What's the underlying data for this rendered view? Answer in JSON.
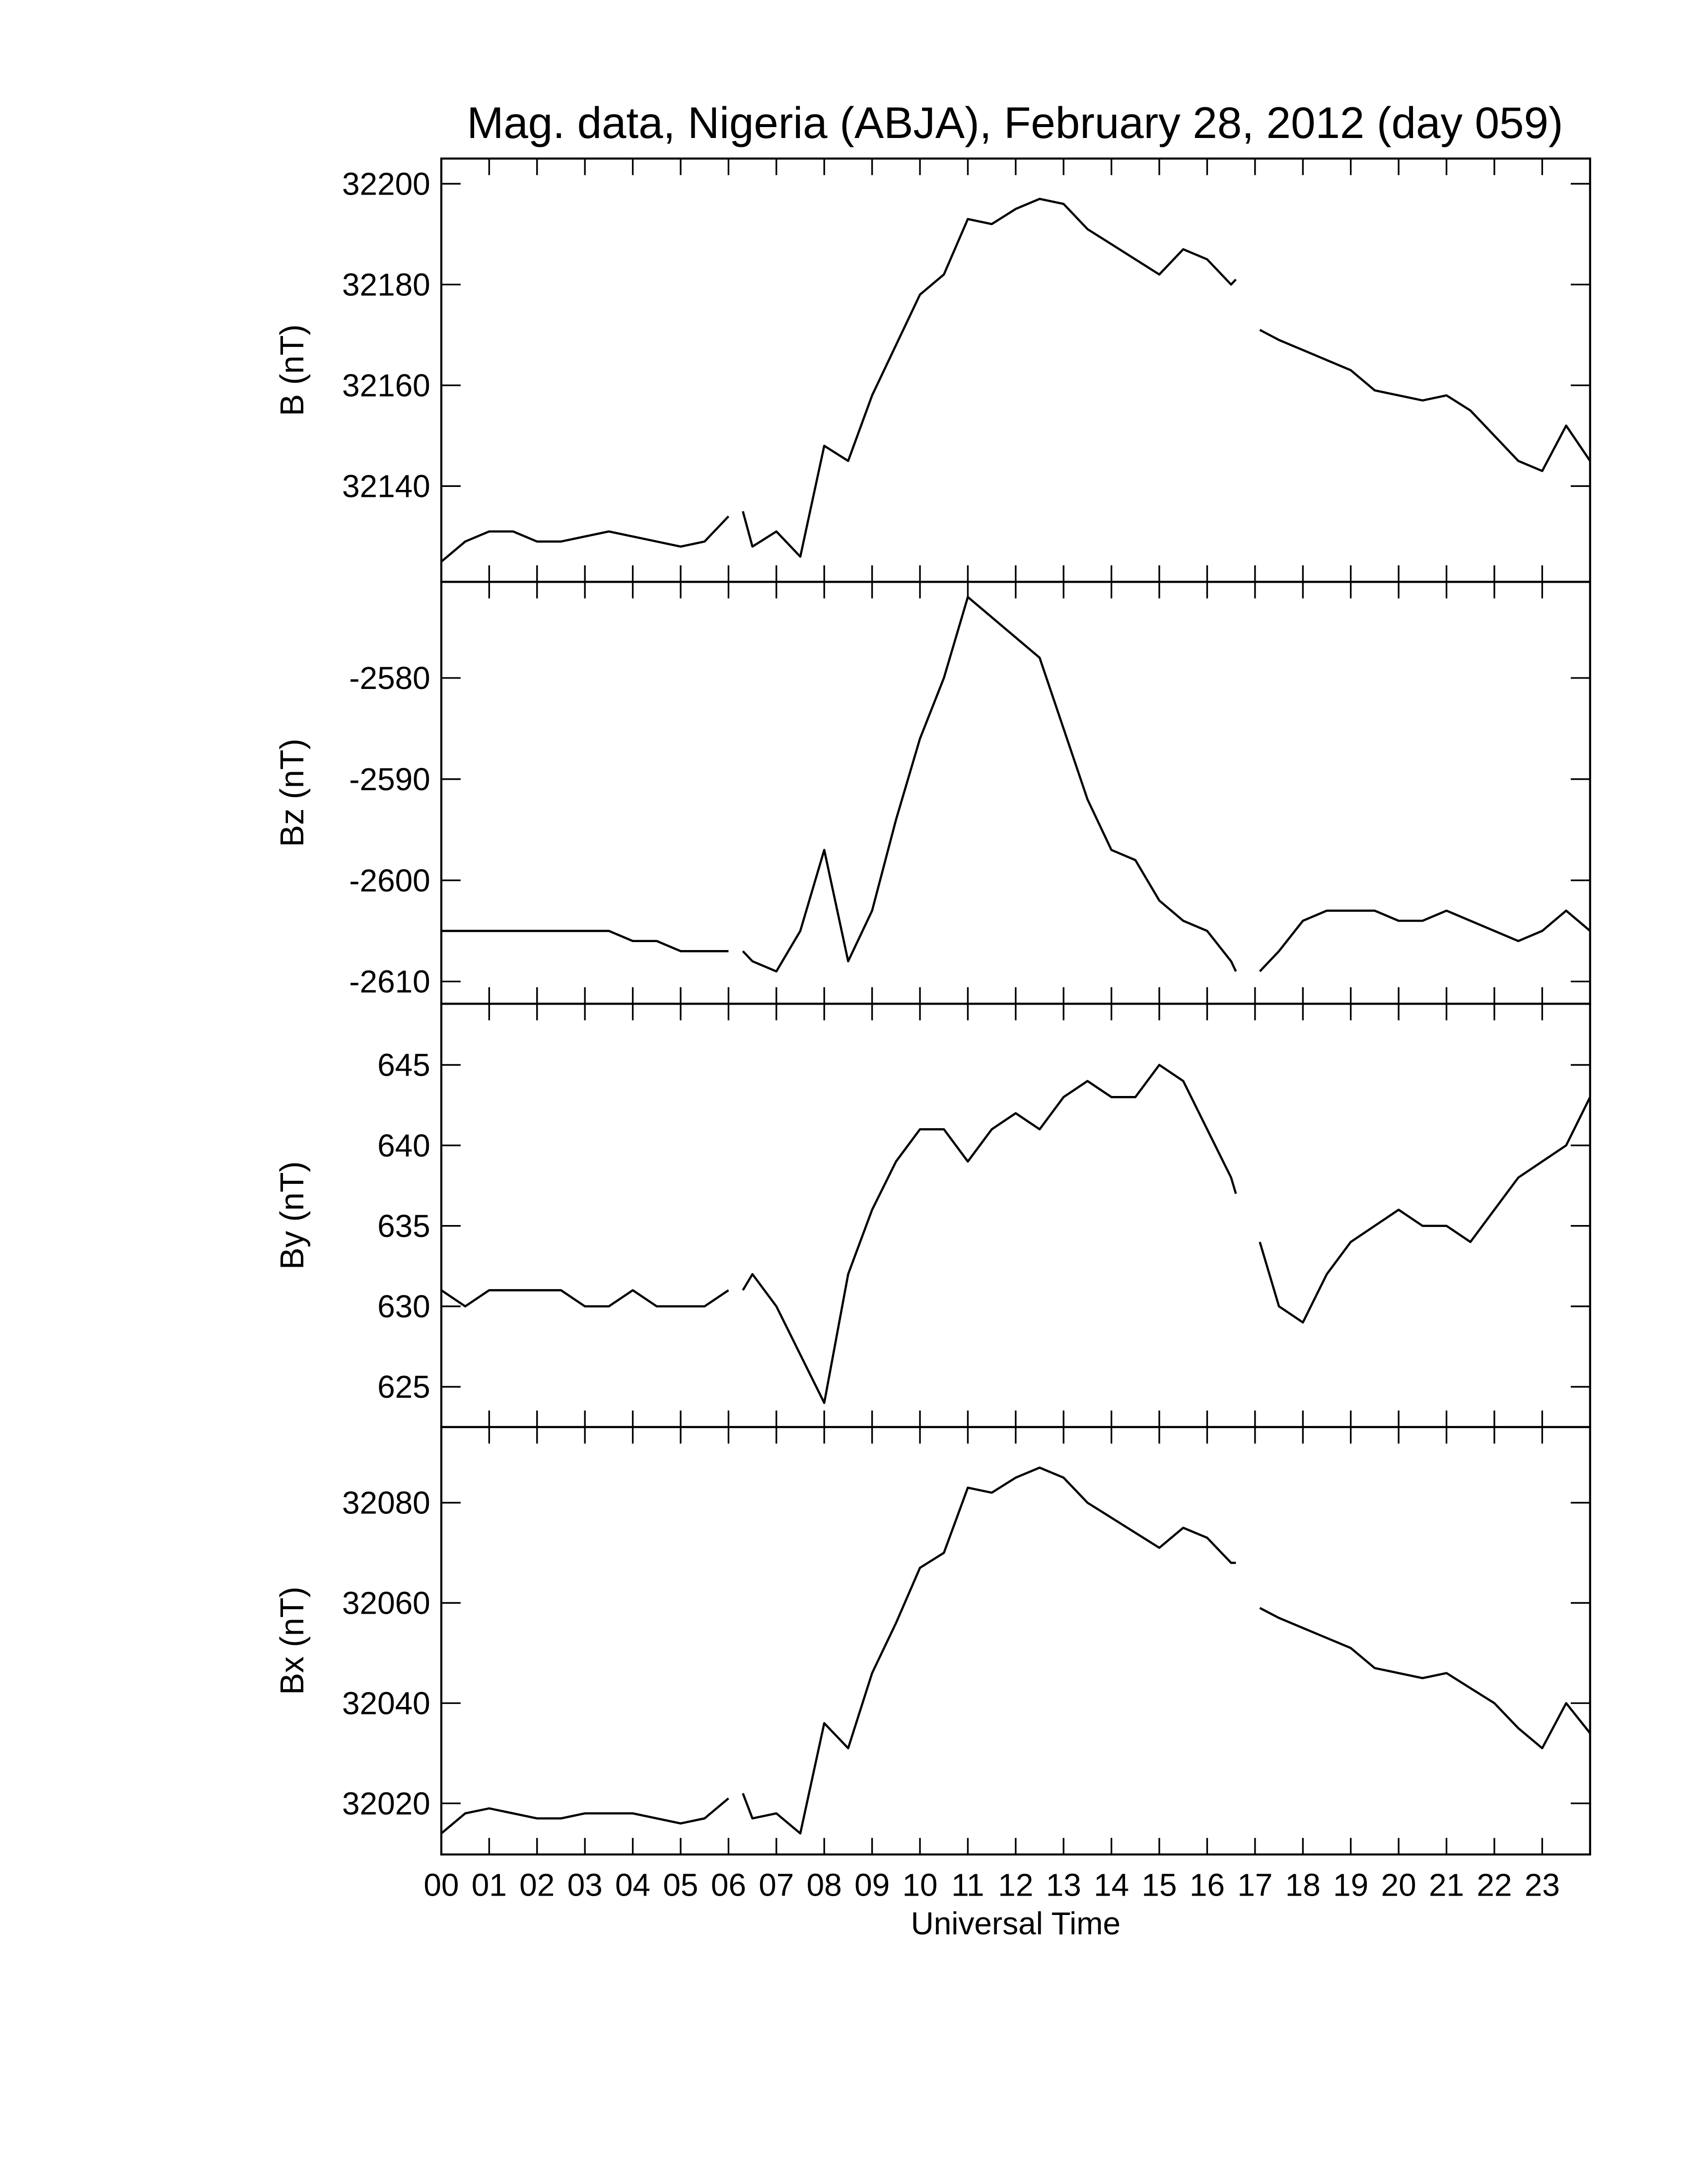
{
  "chart_data": [
    {
      "type": "line",
      "title": "Mag. data, Nigeria (ABJA), February 28, 2012 (day 059)",
      "ylabel": "B (nT)",
      "x": [
        0,
        0.5,
        1,
        1.5,
        2,
        2.5,
        3,
        3.5,
        4,
        4.5,
        5,
        5.5,
        6,
        6.2,
        6.3,
        6.5,
        7,
        7.5,
        8,
        8.5,
        9,
        9.5,
        10,
        10.5,
        11,
        11.5,
        12,
        12.5,
        13,
        13.5,
        14,
        14.5,
        15,
        15.5,
        16,
        16.5,
        16.6,
        16.8,
        17.1,
        17.5,
        18,
        18.5,
        19,
        19.5,
        20,
        20.5,
        21,
        21.5,
        22,
        22.5,
        23,
        23.5,
        24
      ],
      "values": [
        32125,
        32129,
        32131,
        32131,
        32129,
        32129,
        32130,
        32131,
        32130,
        32129,
        32128,
        32129,
        32134,
        null,
        32135,
        32128,
        32131,
        32126,
        32148,
        32145,
        32158,
        32168,
        32178,
        32182,
        32193,
        32192,
        32195,
        32197,
        32196,
        32191,
        32188,
        32185,
        32182,
        32187,
        32185,
        32180,
        32181,
        null,
        32171,
        32169,
        32167,
        32165,
        32163,
        32159,
        32158,
        32157,
        32158,
        32155,
        32150,
        32145,
        32143,
        32152,
        32145
      ],
      "color": "#000000",
      "xlim": [
        0,
        24
      ],
      "xticks": [
        0,
        1,
        2,
        3,
        4,
        5,
        6,
        7,
        8,
        9,
        10,
        11,
        12,
        13,
        14,
        15,
        16,
        17,
        18,
        19,
        20,
        21,
        22,
        23
      ],
      "ylim": [
        32121,
        32205
      ],
      "yticks": [
        32140,
        32160,
        32180,
        32200
      ]
    },
    {
      "type": "line",
      "ylabel": "Bz (nT)",
      "x": [
        0,
        0.5,
        1,
        1.5,
        2,
        2.5,
        3,
        3.5,
        4,
        4.5,
        5,
        5.5,
        6,
        6.2,
        6.3,
        6.5,
        7,
        7.5,
        8,
        8.5,
        9,
        9.5,
        10,
        10.5,
        11,
        11.5,
        12,
        12.5,
        13,
        13.5,
        14,
        14.5,
        15,
        15.5,
        16,
        16.5,
        16.6,
        16.8,
        17.1,
        17.5,
        18,
        18.5,
        19,
        19.5,
        20,
        20.5,
        21,
        21.5,
        22,
        22.5,
        23,
        23.5,
        24
      ],
      "values": [
        -2605,
        -2605,
        -2605,
        -2605,
        -2605,
        -2605,
        -2605,
        -2605,
        -2606,
        -2606,
        -2607,
        -2607,
        -2607,
        null,
        -2607,
        -2608,
        -2609,
        -2605,
        -2597,
        -2608,
        -2603,
        -2594,
        -2586,
        -2580,
        -2572,
        -2574,
        -2576,
        -2578,
        -2585,
        -2592,
        -2597,
        -2598,
        -2602,
        -2604,
        -2605,
        -2608,
        -2609,
        null,
        -2609,
        -2607,
        -2604,
        -2603,
        -2603,
        -2603,
        -2604,
        -2604,
        -2603,
        -2604,
        -2605,
        -2606,
        -2605,
        -2603,
        -2605
      ],
      "color": "#000000",
      "xlim": [
        0,
        24
      ],
      "xticks": [
        0,
        1,
        2,
        3,
        4,
        5,
        6,
        7,
        8,
        9,
        10,
        11,
        12,
        13,
        14,
        15,
        16,
        17,
        18,
        19,
        20,
        21,
        22,
        23
      ],
      "ylim": [
        -2612.2,
        -2570.5
      ],
      "yticks": [
        -2610,
        -2600,
        -2590,
        -2580
      ]
    },
    {
      "type": "line",
      "ylabel": "By (nT)",
      "x": [
        0,
        0.5,
        1,
        1.5,
        2,
        2.5,
        3,
        3.5,
        4,
        4.5,
        5,
        5.5,
        6,
        6.2,
        6.3,
        6.5,
        7,
        7.5,
        8,
        8.5,
        9,
        9.5,
        10,
        10.5,
        11,
        11.5,
        12,
        12.5,
        13,
        13.5,
        14,
        14.5,
        15,
        15.5,
        16,
        16.5,
        16.6,
        16.8,
        17.1,
        17.5,
        18,
        18.5,
        19,
        19.5,
        20,
        20.5,
        21,
        21.5,
        22,
        22.5,
        23,
        23.5,
        24
      ],
      "values": [
        631,
        630,
        631,
        631,
        631,
        631,
        630,
        630,
        631,
        630,
        630,
        630,
        631,
        null,
        631,
        632,
        630,
        627,
        624,
        632,
        636,
        639,
        641,
        641,
        639,
        641,
        642,
        641,
        643,
        644,
        643,
        643,
        645,
        644,
        641,
        638,
        637,
        null,
        634,
        630,
        629,
        632,
        634,
        635,
        636,
        635,
        635,
        634,
        636,
        638,
        639,
        640,
        643
      ],
      "color": "#000000",
      "xlim": [
        0,
        24
      ],
      "xticks": [
        0,
        1,
        2,
        3,
        4,
        5,
        6,
        7,
        8,
        9,
        10,
        11,
        12,
        13,
        14,
        15,
        16,
        17,
        18,
        19,
        20,
        21,
        22,
        23
      ],
      "ylim": [
        622.5,
        648.8
      ],
      "yticks": [
        625,
        630,
        635,
        640,
        645
      ]
    },
    {
      "type": "line",
      "ylabel": "Bx (nT)",
      "xlabel": "Universal Time",
      "x": [
        0,
        0.5,
        1,
        1.5,
        2,
        2.5,
        3,
        3.5,
        4,
        4.5,
        5,
        5.5,
        6,
        6.2,
        6.3,
        6.5,
        7,
        7.5,
        8,
        8.5,
        9,
        9.5,
        10,
        10.5,
        11,
        11.5,
        12,
        12.5,
        13,
        13.5,
        14,
        14.5,
        15,
        15.5,
        16,
        16.5,
        16.6,
        16.8,
        17.1,
        17.5,
        18,
        18.5,
        19,
        19.5,
        20,
        20.5,
        21,
        21.5,
        22,
        22.5,
        23,
        23.5,
        24
      ],
      "values": [
        32014,
        32018,
        32019,
        32018,
        32017,
        32017,
        32018,
        32018,
        32018,
        32017,
        32016,
        32017,
        32021,
        null,
        32022,
        32017,
        32018,
        32014,
        32036,
        32031,
        32046,
        32056,
        32067,
        32070,
        32083,
        32082,
        32085,
        32087,
        32085,
        32080,
        32077,
        32074,
        32071,
        32075,
        32073,
        32068,
        32068,
        null,
        32059,
        32057,
        32055,
        32053,
        32051,
        32047,
        32046,
        32045,
        32046,
        32043,
        32040,
        32035,
        32031,
        32040,
        32034
      ],
      "color": "#000000",
      "xlim": [
        0,
        24
      ],
      "xticks": [
        {
          "value": 0,
          "label": "00"
        },
        {
          "value": 1,
          "label": "01"
        },
        {
          "value": 2,
          "label": "02"
        },
        {
          "value": 3,
          "label": "03"
        },
        {
          "value": 4,
          "label": "04"
        },
        {
          "value": 5,
          "label": "05"
        },
        {
          "value": 6,
          "label": "06"
        },
        {
          "value": 7,
          "label": "07"
        },
        {
          "value": 8,
          "label": "08"
        },
        {
          "value": 9,
          "label": "09"
        },
        {
          "value": 10,
          "label": "10"
        },
        {
          "value": 11,
          "label": "11"
        },
        {
          "value": 12,
          "label": "12"
        },
        {
          "value": 13,
          "label": "13"
        },
        {
          "value": 14,
          "label": "14"
        },
        {
          "value": 15,
          "label": "15"
        },
        {
          "value": 16,
          "label": "16"
        },
        {
          "value": 17,
          "label": "17"
        },
        {
          "value": 18,
          "label": "18"
        },
        {
          "value": 19,
          "label": "19"
        },
        {
          "value": 20,
          "label": "20"
        },
        {
          "value": 21,
          "label": "21"
        },
        {
          "value": 22,
          "label": "22"
        },
        {
          "value": 23,
          "label": "23"
        }
      ],
      "ylim": [
        32009.8,
        32095.1
      ],
      "yticks": [
        32020,
        32040,
        32060,
        32080
      ]
    }
  ]
}
